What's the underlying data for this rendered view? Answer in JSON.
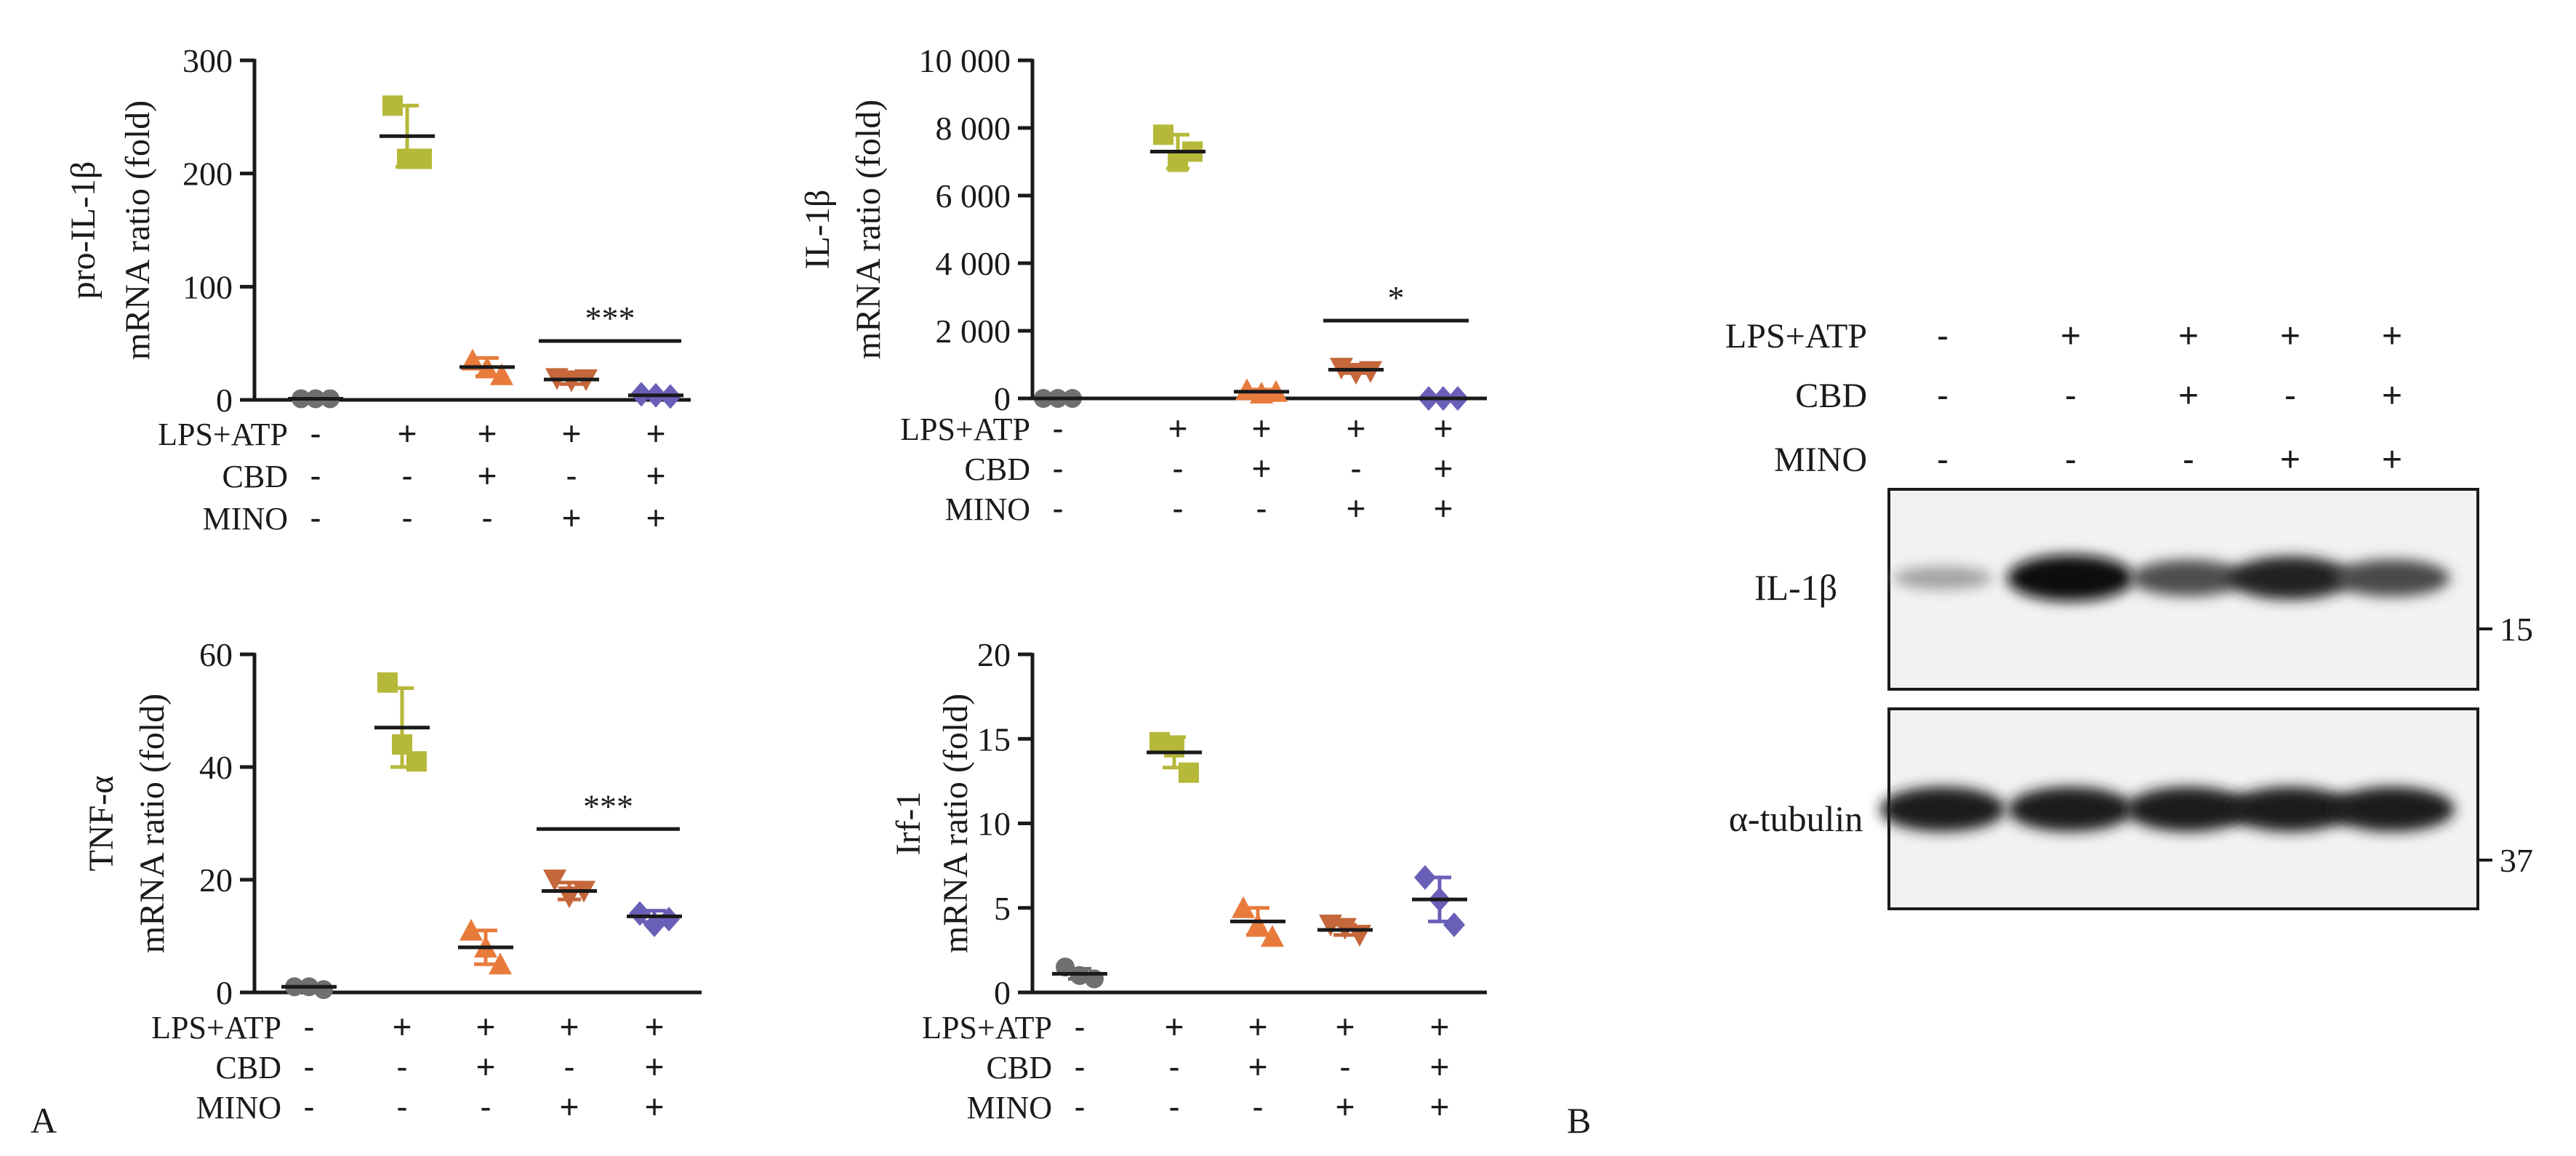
{
  "figure": {
    "panel_labels": [
      "A",
      "B"
    ],
    "conditions": {
      "labels": [
        "LPS+ATP",
        "CBD",
        "MINO"
      ],
      "matrix": [
        [
          "-",
          "+",
          "+",
          "+",
          "+"
        ],
        [
          "-",
          "-",
          "+",
          "-",
          "+"
        ],
        [
          "-",
          "-",
          "-",
          "+",
          "+"
        ]
      ]
    },
    "group_colors": [
      "#6f6f6f",
      "#b6b83a",
      "#e87b3c",
      "#c5673a",
      "#6a5fb8"
    ],
    "group_markers": [
      "circle",
      "square",
      "triangle-up",
      "triangle-down",
      "diamond"
    ]
  },
  "chart_data": [
    {
      "type": "scatter",
      "title": "",
      "ylabel_lines": [
        "pro-IL-1β",
        "mRNA ratio (fold)"
      ],
      "ylim": [
        0,
        300
      ],
      "yticks": [
        0,
        100,
        200,
        300
      ],
      "ytick_labels": [
        "0",
        "100",
        "200",
        "300"
      ],
      "groups": [
        {
          "points": [
            1,
            1,
            1
          ],
          "mean": 1,
          "sd": 0.5
        },
        {
          "points": [
            260,
            213,
            213
          ],
          "mean": 233,
          "sd": 27
        },
        {
          "points": [
            35,
            28,
            22
          ],
          "mean": 29,
          "sd": 8
        },
        {
          "points": [
            19,
            17,
            18
          ],
          "mean": 18,
          "sd": 4
        },
        {
          "points": [
            5,
            4,
            3
          ],
          "mean": 4,
          "sd": 1
        }
      ],
      "significance": {
        "label": "***",
        "from_group": 3,
        "to_group": 4,
        "y": 52
      }
    },
    {
      "type": "scatter",
      "title": "",
      "ylabel_lines": [
        "IL-1β",
        "mRNA ratio (fold)"
      ],
      "ylim": [
        0,
        10000
      ],
      "yticks": [
        0,
        2000,
        4000,
        6000,
        8000,
        10000
      ],
      "ytick_labels": [
        "0",
        "2 000",
        "4 000",
        "6 000",
        "8 000",
        "10 000"
      ],
      "groups": [
        {
          "points": [
            0,
            0,
            0
          ],
          "mean": 0,
          "sd": 0
        },
        {
          "points": [
            7800,
            7000,
            7300
          ],
          "mean": 7300,
          "sd": 500
        },
        {
          "points": [
            250,
            150,
            200
          ],
          "mean": 200,
          "sd": 60
        },
        {
          "points": [
            900,
            750,
            800
          ],
          "mean": 850,
          "sd": 100
        },
        {
          "points": [
            0,
            0,
            0
          ],
          "mean": 0,
          "sd": 0
        }
      ],
      "significance": {
        "label": "*",
        "from_group": 3,
        "to_group": 4,
        "y": 2300
      }
    },
    {
      "type": "scatter",
      "title": "",
      "ylabel_lines": [
        "TNF-α",
        "mRNA ratio (fold)"
      ],
      "ylim": [
        0,
        60
      ],
      "yticks": [
        0,
        20,
        40,
        60
      ],
      "ytick_labels": [
        "0",
        "20",
        "40",
        "60"
      ],
      "groups": [
        {
          "points": [
            1,
            1,
            0.5
          ],
          "mean": 1,
          "sd": 0.5
        },
        {
          "points": [
            55,
            44,
            41
          ],
          "mean": 47,
          "sd": 7
        },
        {
          "points": [
            11,
            8,
            5
          ],
          "mean": 8,
          "sd": 3
        },
        {
          "points": [
            20,
            17,
            18
          ],
          "mean": 18,
          "sd": 1.5
        },
        {
          "points": [
            14,
            12,
            13
          ],
          "mean": 13.5,
          "sd": 1
        }
      ],
      "significance": {
        "label": "***",
        "from_group": 3,
        "to_group": 4,
        "y": 29
      }
    },
    {
      "type": "scatter",
      "title": "",
      "ylabel_lines": [
        "Irf-1",
        "mRNA ratio (fold)"
      ],
      "ylim": [
        0,
        20
      ],
      "yticks": [
        0,
        5,
        10,
        15,
        20
      ],
      "ytick_labels": [
        "0",
        "5",
        "10",
        "15",
        "20"
      ],
      "groups": [
        {
          "points": [
            1.5,
            1,
            0.8
          ],
          "mean": 1.1,
          "sd": 0.3
        },
        {
          "points": [
            14.8,
            14.5,
            13
          ],
          "mean": 14.2,
          "sd": 0.9
        },
        {
          "points": [
            5,
            4,
            3.3
          ],
          "mean": 4.2,
          "sd": 0.8
        },
        {
          "points": [
            4,
            3.8,
            3.4
          ],
          "mean": 3.7,
          "sd": 0.3
        },
        {
          "points": [
            6.8,
            5.5,
            4
          ],
          "mean": 5.5,
          "sd": 1.3
        }
      ],
      "significance": null
    }
  ],
  "western_blot": {
    "conditions": {
      "labels": [
        "LPS+ATP",
        "CBD",
        "MINO"
      ],
      "matrix": [
        [
          "-",
          "+",
          "+",
          "+",
          "+"
        ],
        [
          "-",
          "-",
          "+",
          "-",
          "+"
        ],
        [
          "-",
          "-",
          "-",
          "+",
          "+"
        ]
      ]
    },
    "bands": [
      {
        "label": "IL-1β",
        "marker": "15",
        "intensity": [
          0.3,
          1.0,
          0.7,
          0.9,
          0.72
        ]
      },
      {
        "label": "α-tubulin",
        "marker": "37",
        "intensity": [
          0.95,
          0.95,
          0.95,
          0.95,
          0.95
        ]
      }
    ]
  }
}
